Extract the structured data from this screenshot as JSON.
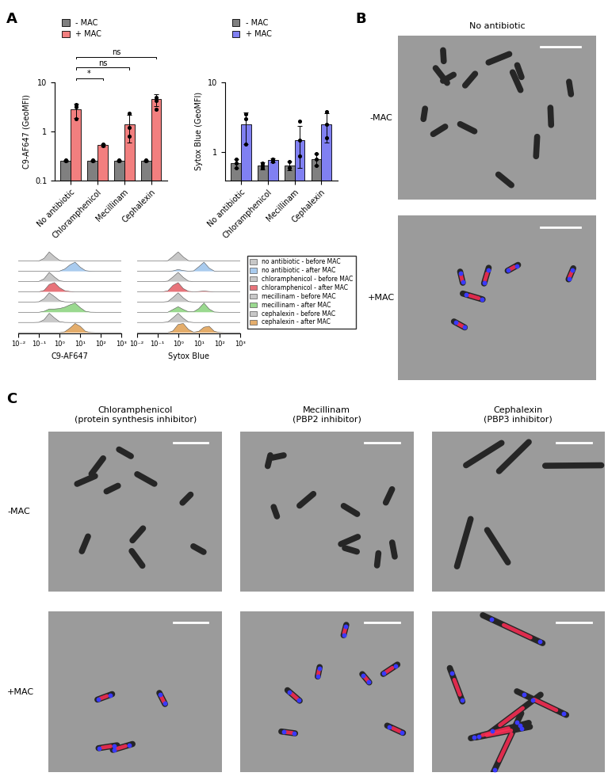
{
  "panel_labels": [
    "A",
    "B",
    "C"
  ],
  "chart_data": [
    {
      "type": "bar",
      "categories": [
        "No antibiotic",
        "Chloramphenicol",
        "Mecillinam",
        "Cephalexin"
      ],
      "ylabel": "C9-AF647 (GeoMFI)",
      "log": "y",
      "ylim": [
        0.1,
        10
      ],
      "yticks": [
        0.1,
        1,
        10
      ],
      "legend": "upper left",
      "series": [
        {
          "name": "- MAC",
          "color": "#808080",
          "values": [
            0.25,
            0.25,
            0.25,
            0.25
          ],
          "errors": [
            0.01,
            0.01,
            0.01,
            0.01
          ],
          "points": [
            [
              0.25,
              0.26,
              0.25
            ],
            [
              0.25,
              0.25,
              0.26
            ],
            [
              0.25,
              0.26,
              0.25
            ],
            [
              0.25,
              0.25,
              0.26
            ]
          ]
        },
        {
          "name": "+ MAC",
          "color": "#f27f7f",
          "values": [
            2.8,
            0.52,
            1.4,
            4.5
          ],
          "errors": [
            0.9,
            0.03,
            0.8,
            1.2
          ],
          "points": [
            [
              3.5,
              3.2,
              1.8
            ],
            [
              0.5,
              0.52,
              0.55
            ],
            [
              2.3,
              1.2,
              0.8
            ],
            [
              5.0,
              4.2,
              2.8
            ]
          ]
        }
      ],
      "annotations": [
        {
          "from": "No antibiotic",
          "to": "Chloramphenicol",
          "label": "*"
        },
        {
          "from": "No antibiotic",
          "to": "Mecillinam",
          "label": "ns"
        },
        {
          "from": "No antibiotic",
          "to": "Cephalexin",
          "label": "ns"
        }
      ]
    },
    {
      "type": "bar",
      "categories": [
        "No antibiotic",
        "Chloramphenicol",
        "Mecillinam",
        "Cephalexin"
      ],
      "ylabel": "Sytox Blue (GeoMFI)",
      "log": "y",
      "ylim": [
        0.4,
        10
      ],
      "yticks": [
        1,
        10
      ],
      "legend": "upper left",
      "series": [
        {
          "name": "- MAC",
          "color": "#808080",
          "values": [
            0.7,
            0.65,
            0.65,
            0.8
          ],
          "errors": [
            0.1,
            0.08,
            0.1,
            0.15
          ],
          "points": [
            [
              0.8,
              0.7,
              0.6
            ],
            [
              0.7,
              0.6,
              0.65
            ],
            [
              0.75,
              0.6,
              0.6
            ],
            [
              0.95,
              0.8,
              0.65
            ]
          ]
        },
        {
          "name": "+ MAC",
          "color": "#8080f2",
          "values": [
            2.5,
            0.78,
            1.5,
            2.5
          ],
          "errors": [
            1.2,
            0.05,
            0.9,
            1.1
          ],
          "points": [
            [
              3.5,
              3.0,
              1.3
            ],
            [
              0.8,
              0.8,
              0.75
            ],
            [
              2.8,
              1.5,
              0.9
            ],
            [
              3.8,
              2.5,
              1.6
            ]
          ]
        }
      ]
    },
    {
      "type": "ridgeline",
      "xlabel": "C9-AF647",
      "log": "x",
      "tick_labels": "x",
      "xlim": [
        0.01,
        1000
      ],
      "xticks": [
        {
          "value": 0.01,
          "label": "10⁻²"
        },
        {
          "value": 0.1,
          "label": "10⁻¹"
        },
        {
          "value": 1,
          "label": "10⁰"
        },
        {
          "value": 10,
          "label": "10¹"
        },
        {
          "value": 100,
          "label": "10²"
        },
        {
          "value": 1000,
          "label": "10³"
        }
      ],
      "x": [
        0.01,
        0.0178,
        0.0316,
        0.0562,
        0.1,
        0.178,
        0.316,
        0.562,
        1,
        1.78,
        3.16,
        5.62,
        10,
        17.8,
        31.6,
        56.2,
        100,
        178,
        316,
        562,
        1000
      ],
      "series": [
        {
          "name": "no antibiotic - before MAC",
          "color": "#c8c8c8",
          "values": [
            0,
            0,
            0,
            0,
            0.02,
            0.3,
            1.0,
            0.5,
            0.08,
            0.01,
            0,
            0,
            0,
            0,
            0,
            0,
            0,
            0,
            0,
            0,
            0
          ]
        },
        {
          "name": "no antibiotic - after MAC",
          "color": "#a9cbee",
          "values": [
            0,
            0,
            0,
            0,
            0,
            0,
            0,
            0,
            0.03,
            0.25,
            0.7,
            1.0,
            0.45,
            0.08,
            0.01,
            0,
            0,
            0,
            0,
            0,
            0
          ]
        },
        {
          "name": "chloramphenicol - before MAC",
          "color": "#c8c8c8",
          "values": [
            0,
            0,
            0,
            0,
            0.02,
            0.3,
            1.0,
            0.5,
            0.08,
            0.01,
            0,
            0,
            0,
            0,
            0,
            0,
            0,
            0,
            0,
            0,
            0
          ]
        },
        {
          "name": "chloramphenicol - after MAC",
          "color": "#e8737a",
          "values": [
            0,
            0,
            0,
            0,
            0,
            0.15,
            0.8,
            1.0,
            0.45,
            0.12,
            0.03,
            0,
            0,
            0,
            0,
            0,
            0,
            0,
            0,
            0,
            0
          ]
        },
        {
          "name": "mecillinam - before MAC",
          "color": "#c8c8c8",
          "values": [
            0,
            0,
            0,
            0,
            0.03,
            0.35,
            1.0,
            0.6,
            0.15,
            0.02,
            0,
            0,
            0,
            0,
            0,
            0,
            0,
            0,
            0,
            0,
            0
          ]
        },
        {
          "name": "mecillinam - after MAC",
          "color": "#9ad98f",
          "values": [
            0,
            0,
            0,
            0,
            0,
            0.1,
            0.35,
            0.35,
            0.4,
            0.55,
            0.8,
            1.0,
            0.5,
            0.1,
            0.01,
            0,
            0,
            0,
            0,
            0,
            0
          ]
        },
        {
          "name": "cephalexin - before MAC",
          "color": "#c8c8c8",
          "values": [
            0,
            0,
            0,
            0,
            0.02,
            0.3,
            1.0,
            0.5,
            0.08,
            0.01,
            0,
            0,
            0,
            0,
            0,
            0,
            0,
            0,
            0,
            0,
            0
          ]
        },
        {
          "name": "cephalexin - after MAC",
          "color": "#e4ad6b",
          "values": [
            0,
            0,
            0,
            0,
            0,
            0,
            0,
            0,
            0,
            0.1,
            0.5,
            1.0,
            0.7,
            0.15,
            0.02,
            0,
            0,
            0,
            0,
            0,
            0
          ]
        }
      ]
    },
    {
      "type": "ridgeline",
      "xlabel": "Sytox Blue",
      "log": "x",
      "tick_labels": "x",
      "legend": "center left",
      "xlim": [
        0.01,
        1000
      ],
      "xticks": [
        {
          "value": 0.01,
          "label": "10⁻²"
        },
        {
          "value": 0.1,
          "label": "10⁻¹"
        },
        {
          "value": 1,
          "label": "10⁰"
        },
        {
          "value": 10,
          "label": "10¹"
        },
        {
          "value": 100,
          "label": "10²"
        },
        {
          "value": 1000,
          "label": "10³"
        }
      ],
      "x": [
        0.01,
        0.0178,
        0.0316,
        0.0562,
        0.1,
        0.178,
        0.316,
        0.562,
        1,
        1.78,
        3.16,
        5.62,
        10,
        17.8,
        31.6,
        56.2,
        100,
        178,
        316,
        562,
        1000
      ],
      "series": [
        {
          "name": "no antibiotic - before MAC",
          "color": "#c8c8c8",
          "values": [
            0,
            0,
            0,
            0,
            0,
            0,
            0.05,
            0.5,
            1.0,
            0.45,
            0.05,
            0,
            0,
            0,
            0,
            0,
            0,
            0,
            0,
            0,
            0
          ]
        },
        {
          "name": "no antibiotic - after MAC",
          "color": "#a9cbee",
          "values": [
            0,
            0,
            0,
            0,
            0,
            0,
            0,
            0.05,
            0.2,
            0.08,
            0.02,
            0.05,
            0.5,
            1.0,
            0.35,
            0.03,
            0,
            0,
            0,
            0,
            0
          ]
        },
        {
          "name": "chloramphenicol - before MAC",
          "color": "#c8c8c8",
          "values": [
            0,
            0,
            0,
            0,
            0,
            0,
            0.05,
            0.5,
            1.0,
            0.45,
            0.05,
            0,
            0,
            0,
            0,
            0,
            0,
            0,
            0,
            0,
            0
          ]
        },
        {
          "name": "chloramphenicol - after MAC",
          "color": "#e8737a",
          "values": [
            0,
            0,
            0,
            0,
            0,
            0,
            0.1,
            0.7,
            1.0,
            0.35,
            0.05,
            0,
            0.03,
            0.08,
            0.03,
            0,
            0,
            0,
            0,
            0,
            0
          ]
        },
        {
          "name": "mecillinam - before MAC",
          "color": "#c8c8c8",
          "values": [
            0,
            0,
            0,
            0,
            0,
            0,
            0.05,
            0.5,
            1.0,
            0.45,
            0.05,
            0,
            0,
            0,
            0,
            0,
            0,
            0,
            0,
            0,
            0
          ]
        },
        {
          "name": "mecillinam - after MAC",
          "color": "#9ad98f",
          "values": [
            0,
            0,
            0,
            0,
            0,
            0,
            0,
            0.3,
            0.6,
            0.3,
            0.05,
            0.05,
            0.4,
            1.0,
            0.35,
            0.03,
            0,
            0,
            0,
            0,
            0
          ]
        },
        {
          "name": "cephalexin - before MAC",
          "color": "#c8c8c8",
          "values": [
            0,
            0,
            0,
            0,
            0,
            0,
            0.05,
            0.5,
            1.0,
            0.45,
            0.05,
            0,
            0,
            0,
            0,
            0,
            0,
            0,
            0,
            0,
            0
          ]
        },
        {
          "name": "cephalexin - after MAC",
          "color": "#e4ad6b",
          "values": [
            0,
            0,
            0,
            0,
            0,
            0,
            0,
            0.2,
            0.9,
            1.0,
            0.35,
            0.05,
            0.15,
            0.6,
            0.7,
            0.15,
            0.02,
            0,
            0,
            0,
            0
          ]
        }
      ]
    }
  ],
  "images": {
    "B": {
      "title": "No antibiotic",
      "rows": [
        "-MAC",
        "+MAC"
      ]
    },
    "C": {
      "columns": [
        "Chloramphenicol\n(protein synthesis inhibitor)",
        "Mecillinam\n(PBP2 inhibitor)",
        "Cephalexin\n(PBP3 inhibitor)"
      ],
      "rows": [
        "-MAC",
        "+MAC"
      ]
    }
  }
}
